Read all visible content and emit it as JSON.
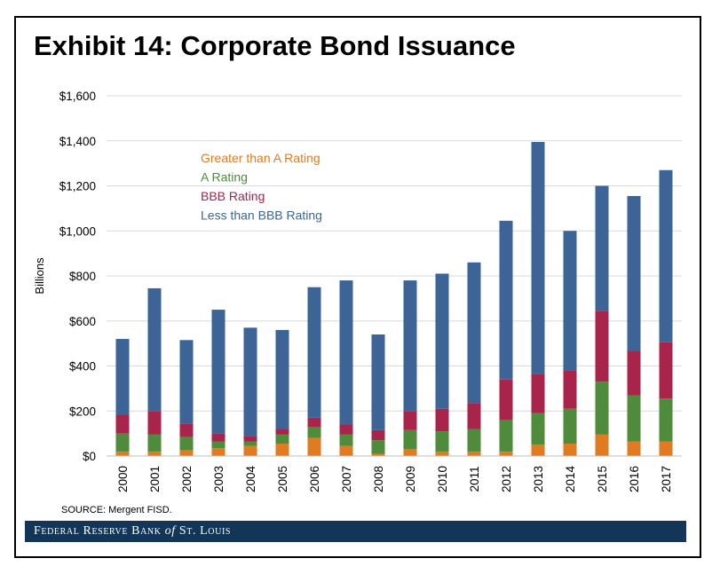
{
  "title": "Exhibit 14: Corporate Bond Issuance",
  "source": "SOURCE: Mergent FISD.",
  "footer": {
    "pre": "Federal Reserve Bank ",
    "of": "of",
    "post": " St. Louis"
  },
  "colors": {
    "gtA": "#E07B22",
    "A": "#4E8B3A",
    "BBB": "#A8244A",
    "ltBBB": "#3D6496",
    "grid": "#D9D9D9",
    "footer": "#123558"
  },
  "chart_data": {
    "type": "bar",
    "stacked": true,
    "ylabel": "Billions",
    "xlabel": "",
    "ylim": [
      0,
      1600
    ],
    "yticks": [
      0,
      200,
      400,
      600,
      800,
      1000,
      1200,
      1400,
      1600
    ],
    "ytick_labels": [
      "$0",
      "$200",
      "$400",
      "$600",
      "$800",
      "$1,000",
      "$1,200",
      "$1,400",
      "$1,600"
    ],
    "grid": "horizontal",
    "legend_position": "upper-left",
    "categories": [
      "2000",
      "2001",
      "2002",
      "2003",
      "2004",
      "2005",
      "2006",
      "2007",
      "2008",
      "2009",
      "2010",
      "2011",
      "2012",
      "2013",
      "2014",
      "2015",
      "2016",
      "2017"
    ],
    "series": [
      {
        "name": "Greater than A Rating",
        "key": "gtA",
        "values": [
          20,
          20,
          25,
          35,
          45,
          55,
          80,
          45,
          10,
          30,
          20,
          20,
          20,
          50,
          55,
          95,
          65,
          65
        ]
      },
      {
        "name": "A Rating",
        "key": "A",
        "values": [
          80,
          75,
          60,
          30,
          20,
          40,
          50,
          50,
          60,
          85,
          90,
          100,
          140,
          140,
          155,
          235,
          205,
          190
        ]
      },
      {
        "name": "BBB Rating",
        "key": "BBB",
        "values": [
          85,
          105,
          60,
          35,
          25,
          25,
          40,
          45,
          45,
          85,
          100,
          115,
          180,
          175,
          170,
          315,
          195,
          250
        ]
      },
      {
        "name": "Less than BBB Rating",
        "key": "ltBBB",
        "values": [
          335,
          545,
          370,
          550,
          480,
          440,
          580,
          640,
          425,
          580,
          600,
          625,
          705,
          1030,
          620,
          555,
          690,
          765
        ]
      }
    ]
  }
}
